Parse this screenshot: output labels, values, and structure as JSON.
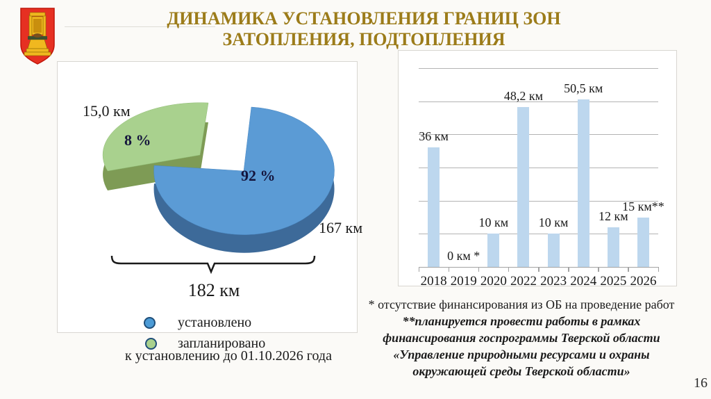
{
  "slide": {
    "title_lines": [
      "ДИНАМИКА УСТАНОВЛЕНИЯ ГРАНИЦ ЗОН",
      "ЗАТОПЛЕНИЯ, ПОДТОПЛЕНИЯ"
    ],
    "page_number": "16"
  },
  "logo": {
    "name": "Герб Тверской области"
  },
  "pie_labels": {
    "green_value": "15,0 км",
    "green_pct": "8 %",
    "blue_pct": "92 %",
    "blue_value": "167 км",
    "total": "182 км"
  },
  "legend": {
    "item1_label": "установлено",
    "item2_label": "запланировано",
    "item2_label2": "к установлению до 01.10.2026 года"
  },
  "footnotes": {
    "line1": "* отсутствие финансирования из ОБ на проведение работ",
    "bold_lines": [
      "**планируется провести работы в рамках",
      "финансирования госпрограммы Тверской области",
      "«Управление природными ресурсами и охраны",
      "окружающей среды Тверской области»"
    ]
  },
  "colors": {
    "title": "#9C7C1A",
    "pie_blue": "#5B9BD5",
    "pie_blue_side": "#3D6A99",
    "pie_green": "#A9D18E",
    "pie_green_side": "#7E9B55",
    "bar_fill": "#BDD7EE",
    "legend_blue": "#4C9BD6",
    "legend_green": "#A9D18E"
  },
  "chart_data": [
    {
      "type": "pie",
      "unit": "км",
      "slices": [
        {
          "label": "установлено",
          "value_km": 167,
          "percent": 92,
          "color": "#5B9BD5"
        },
        {
          "label": "запланировано к установлению до 01.10.2026 года",
          "value_km": 15.0,
          "percent": 8,
          "color": "#A9D18E"
        }
      ],
      "total_label": "182 км",
      "style": "3d-exploded"
    },
    {
      "type": "bar",
      "categories": [
        "2018",
        "2019",
        "2020",
        "2022",
        "2023",
        "2024",
        "2025",
        "2026"
      ],
      "values": [
        36,
        0,
        10,
        48.2,
        10,
        50.5,
        12,
        15
      ],
      "bar_labels": [
        "36 км",
        "0 км *",
        "10 км",
        "48,2 км",
        "10 км",
        "50,5 км",
        "12 км",
        "15 км**"
      ],
      "xlabel": "",
      "ylabel": "",
      "ylim": [
        0,
        60
      ],
      "gridline_step": 10,
      "grid": true,
      "legend_position": "none"
    }
  ]
}
